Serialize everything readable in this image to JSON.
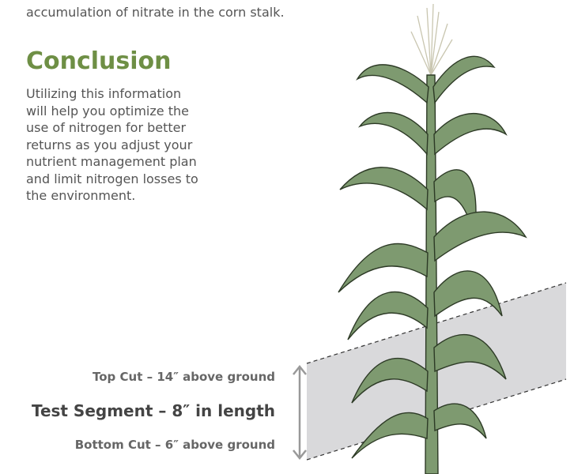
{
  "intro_text": "accumulation of nitrate in the corn stalk.",
  "conclusion": {
    "heading": "Conclusion",
    "lines": [
      "Utilizing this information",
      "will help you optimize the",
      "use of nitrogen for better",
      "returns as you adjust your",
      "nutrient management plan",
      "and limit nitrogen losses to",
      "the environment."
    ]
  },
  "labels": {
    "top_cut": "Top Cut – 14″ above ground",
    "test_segment": "Test Segment – 8″ in length",
    "bottom_cut": "Bottom Cut – 6″ above ground"
  }
}
